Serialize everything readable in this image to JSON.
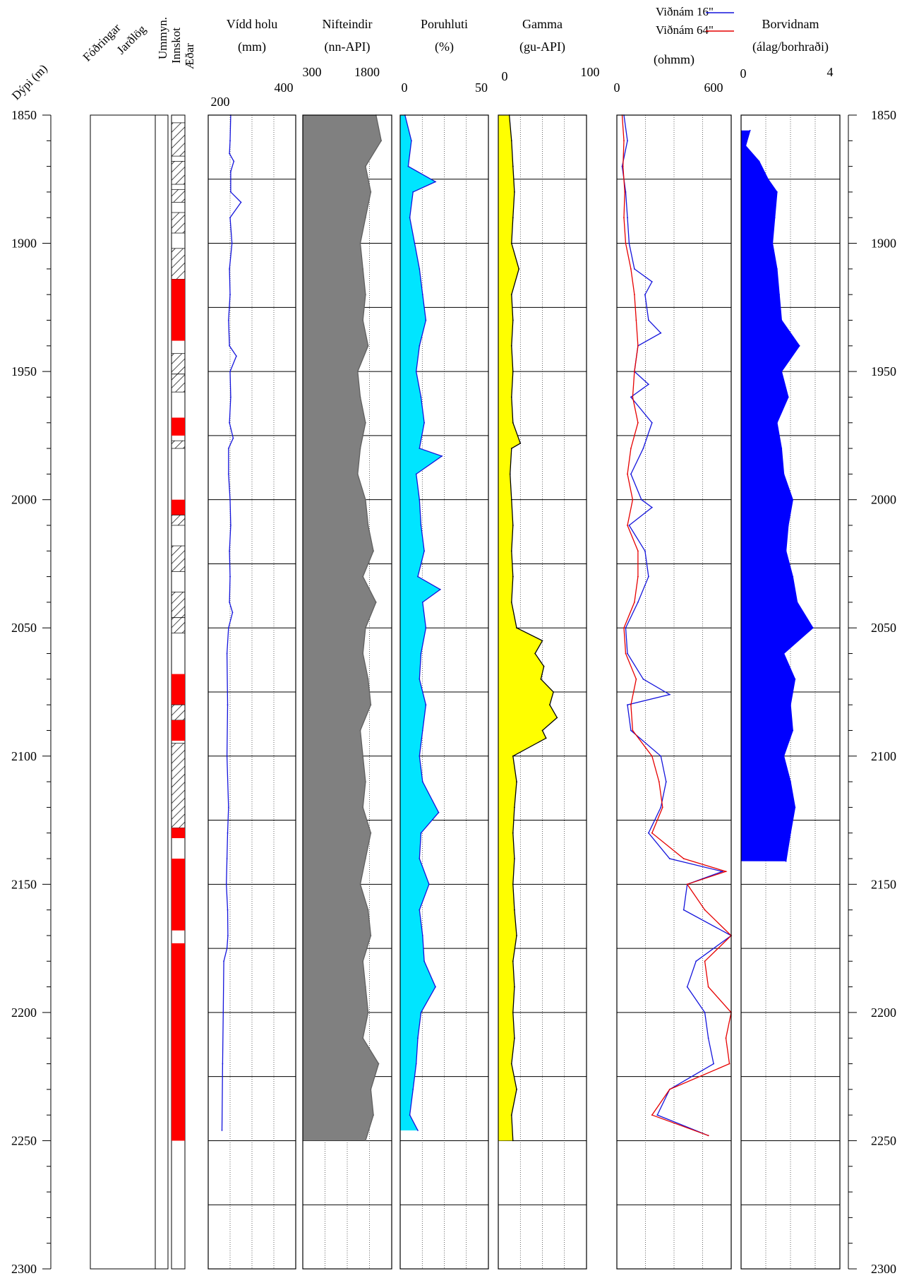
{
  "chart_data": {
    "type": "line",
    "title": "",
    "depth_axis": {
      "label": "Dýpi (m)",
      "range": [
        1850,
        2300
      ],
      "ticks": [
        "1850",
        "1900",
        "1950",
        "2000",
        "2050",
        "2100",
        "2150",
        "2200",
        "2250",
        "2300"
      ]
    },
    "columns": {
      "fodringar": {
        "label": "Fóðringar"
      },
      "jardlog": {
        "label": "Jarðlög"
      },
      "ummyn": {
        "label": "Ummyn."
      },
      "innskot": {
        "label": "Innskot"
      },
      "aedar": {
        "label": "Æðar"
      }
    },
    "lithology_intervals": [
      {
        "top": 1853,
        "bottom": 1866,
        "kind": "hatch"
      },
      {
        "top": 1868,
        "bottom": 1877,
        "kind": "hatch"
      },
      {
        "top": 1879,
        "bottom": 1884,
        "kind": "hatch"
      },
      {
        "top": 1888,
        "bottom": 1896,
        "kind": "hatch"
      },
      {
        "top": 1902,
        "bottom": 1914,
        "kind": "hatch"
      },
      {
        "top": 1914,
        "bottom": 1938,
        "kind": "red"
      },
      {
        "top": 1943,
        "bottom": 1951,
        "kind": "hatch"
      },
      {
        "top": 1951,
        "bottom": 1958,
        "kind": "hatch"
      },
      {
        "top": 1968,
        "bottom": 1975,
        "kind": "red"
      },
      {
        "top": 1977,
        "bottom": 1980,
        "kind": "hatch"
      },
      {
        "top": 2000,
        "bottom": 2006,
        "kind": "red"
      },
      {
        "top": 2006,
        "bottom": 2010,
        "kind": "hatch"
      },
      {
        "top": 2018,
        "bottom": 2028,
        "kind": "hatch"
      },
      {
        "top": 2036,
        "bottom": 2046,
        "kind": "hatch"
      },
      {
        "top": 2046,
        "bottom": 2052,
        "kind": "hatch"
      },
      {
        "top": 2068,
        "bottom": 2080,
        "kind": "red"
      },
      {
        "top": 2080,
        "bottom": 2086,
        "kind": "hatch"
      },
      {
        "top": 2086,
        "bottom": 2094,
        "kind": "red"
      },
      {
        "top": 2095,
        "bottom": 2128,
        "kind": "hatch"
      },
      {
        "top": 2128,
        "bottom": 2132,
        "kind": "red"
      },
      {
        "top": 2140,
        "bottom": 2168,
        "kind": "red"
      },
      {
        "top": 2173,
        "bottom": 2250,
        "kind": "red"
      }
    ],
    "tracks": [
      {
        "id": "caliper",
        "title": "Vídd holu",
        "unit": "(mm)",
        "scale": "linear",
        "range": [
          150,
          430
        ],
        "tick_labels": [
          "200",
          "400"
        ],
        "fill": false,
        "color": "#1414dc",
        "series": [
          {
            "name": "Vídd holu",
            "depth": [
              1850,
              1860,
              1865,
              1868,
              1872,
              1880,
              1884,
              1890,
              1900,
              1910,
              1920,
              1930,
              1940,
              1944,
              1950,
              1960,
              1970,
              1976,
              1980,
              1990,
              2000,
              2010,
              2020,
              2030,
              2040,
              2044,
              2050,
              2060,
              2080,
              2100,
              2120,
              2130,
              2140,
              2150,
              2160,
              2170,
              2175,
              2180,
              2200,
              2220,
              2246
            ],
            "value": [
              222,
              220,
              218,
              232,
              222,
              222,
              255,
              220,
              226,
              218,
              220,
              215,
              218,
              240,
              220,
              222,
              218,
              230,
              215,
              215,
              220,
              222,
              218,
              220,
              218,
              228,
              215,
              210,
              212,
              210,
              215,
              212,
              210,
              208,
              212,
              213,
              210,
              200,
              198,
              196,
              194
            ]
          }
        ]
      },
      {
        "id": "neutron",
        "title": "Nifteindir",
        "unit": "(nn-API)",
        "scale": "linear",
        "range": [
          300,
          2000
        ],
        "tick_labels": [
          "300",
          "1800"
        ],
        "fill": true,
        "fill_color": "#808080",
        "color": "#606060",
        "series": [
          {
            "name": "Nifteindir",
            "depth": [
              1850,
              1860,
              1870,
              1880,
              1890,
              1900,
              1910,
              1920,
              1930,
              1940,
              1950,
              1960,
              1970,
              1980,
              1990,
              2000,
              2010,
              2020,
              2030,
              2040,
              2050,
              2060,
              2070,
              2080,
              2090,
              2100,
              2110,
              2120,
              2130,
              2140,
              2150,
              2160,
              2170,
              2180,
              2190,
              2200,
              2210,
              2220,
              2230,
              2240,
              2250
            ],
            "value": [
              1700,
              1800,
              1500,
              1600,
              1500,
              1400,
              1450,
              1500,
              1450,
              1550,
              1350,
              1400,
              1500,
              1400,
              1350,
              1500,
              1550,
              1650,
              1450,
              1700,
              1500,
              1450,
              1550,
              1600,
              1400,
              1450,
              1500,
              1450,
              1600,
              1500,
              1400,
              1550,
              1600,
              1450,
              1500,
              1550,
              1450,
              1750,
              1600,
              1650,
              1500
            ]
          }
        ]
      },
      {
        "id": "porosity",
        "title": "Poruhluti",
        "unit": "(%)",
        "scale": "linear",
        "range": [
          0,
          55
        ],
        "tick_labels": [
          "0",
          "50"
        ],
        "fill": true,
        "fill_color": "#00e5ff",
        "color": "#1414dc",
        "series": [
          {
            "name": "Poruhluti",
            "depth": [
              1850,
              1860,
              1870,
              1876,
              1880,
              1890,
              1900,
              1910,
              1920,
              1930,
              1940,
              1950,
              1960,
              1970,
              1980,
              1983,
              1990,
              2000,
              2010,
              2020,
              2030,
              2035,
              2040,
              2050,
              2060,
              2070,
              2080,
              2090,
              2100,
              2110,
              2122,
              2130,
              2140,
              2150,
              2160,
              2170,
              2180,
              2190,
              2200,
              2210,
              2220,
              2230,
              2240,
              2246
            ],
            "value": [
              3,
              7,
              5,
              22,
              8,
              6,
              9,
              12,
              14,
              16,
              12,
              10,
              13,
              15,
              12,
              26,
              10,
              12,
              13,
              15,
              11,
              25,
              14,
              16,
              13,
              12,
              16,
              14,
              12,
              14,
              24,
              13,
              12,
              18,
              12,
              14,
              15,
              22,
              13,
              11,
              10,
              8,
              6,
              11
            ]
          }
        ]
      },
      {
        "id": "gamma",
        "title": "Gamma",
        "unit": "(gu-API)",
        "scale": "linear",
        "range": [
          0,
          120
        ],
        "tick_labels": [
          "0",
          "100"
        ],
        "fill": true,
        "fill_color": "#ffff00",
        "color": "#000000",
        "series": [
          {
            "name": "Gamma",
            "depth": [
              1850,
              1860,
              1870,
              1880,
              1890,
              1900,
              1910,
              1920,
              1930,
              1940,
              1950,
              1960,
              1970,
              1978,
              1980,
              1990,
              2000,
              2010,
              2020,
              2030,
              2040,
              2050,
              2055,
              2060,
              2065,
              2070,
              2075,
              2080,
              2085,
              2090,
              2093,
              2100,
              2110,
              2120,
              2130,
              2140,
              2150,
              2160,
              2170,
              2180,
              2190,
              2200,
              2210,
              2220,
              2230,
              2240,
              2250
            ],
            "value": [
              15,
              18,
              20,
              22,
              20,
              18,
              28,
              18,
              20,
              18,
              20,
              18,
              20,
              30,
              18,
              16,
              18,
              20,
              18,
              20,
              18,
              25,
              60,
              50,
              62,
              58,
              75,
              70,
              80,
              60,
              65,
              20,
              25,
              22,
              20,
              22,
              20,
              22,
              25,
              20,
              22,
              20,
              22,
              18,
              25,
              18,
              20
            ]
          }
        ]
      },
      {
        "id": "resistivity",
        "title": "",
        "unit": "(ohmm)",
        "scale": "linear",
        "range": [
          0,
          650
        ],
        "tick_labels": [
          "0",
          "600"
        ],
        "fill": false,
        "series": [
          {
            "name": "Viðnám 16\"",
            "color": "#1414dc",
            "depth": [
              1850,
              1860,
              1870,
              1880,
              1890,
              1900,
              1910,
              1915,
              1920,
              1930,
              1935,
              1940,
              1950,
              1955,
              1960,
              1970,
              1980,
              1990,
              2000,
              2003,
              2010,
              2020,
              2030,
              2040,
              2050,
              2060,
              2070,
              2076,
              2080,
              2090,
              2100,
              2110,
              2120,
              2130,
              2140,
              2145,
              2150,
              2160,
              2170,
              2180,
              2190,
              2200,
              2210,
              2220,
              2230,
              2240,
              2248
            ],
            "value": [
              40,
              60,
              30,
              50,
              60,
              70,
              100,
              200,
              160,
              180,
              250,
              120,
              100,
              180,
              80,
              200,
              150,
              80,
              140,
              200,
              70,
              160,
              180,
              120,
              50,
              60,
              150,
              300,
              60,
              80,
              250,
              280,
              250,
              180,
              300,
              600,
              400,
              380,
              650,
              450,
              400,
              500,
              520,
              550,
              300,
              230,
              520
            ]
          },
          {
            "name": "Viðnám 64\"",
            "color": "#e60000",
            "depth": [
              1850,
              1860,
              1870,
              1880,
              1890,
              1900,
              1910,
              1920,
              1930,
              1940,
              1950,
              1960,
              1970,
              1980,
              1990,
              2000,
              2010,
              2020,
              2030,
              2040,
              2050,
              2060,
              2070,
              2080,
              2090,
              2100,
              2110,
              2120,
              2130,
              2140,
              2145,
              2150,
              2160,
              2170,
              2180,
              2190,
              2200,
              2210,
              2220,
              2230,
              2240,
              2248
            ],
            "value": [
              30,
              40,
              35,
              45,
              40,
              50,
              80,
              100,
              110,
              120,
              100,
              90,
              120,
              80,
              60,
              90,
              60,
              120,
              120,
              100,
              40,
              50,
              110,
              80,
              90,
              200,
              240,
              260,
              200,
              380,
              620,
              400,
              500,
              650,
              500,
              520,
              650,
              620,
              640,
              300,
              200,
              520
            ]
          }
        ]
      },
      {
        "id": "rop",
        "title": "Borvidnam",
        "unit": "(álag/borhraði)",
        "scale": "linear",
        "range": [
          0,
          4.4
        ],
        "tick_labels": [
          "0",
          "4"
        ],
        "fill": true,
        "fill_color": "#0000ff",
        "color": "#0000ff",
        "series": [
          {
            "name": "Borvidnam",
            "depth": [
              1856,
              1862,
              1868,
              1875,
              1880,
              1890,
              1900,
              1910,
              1920,
              1930,
              1940,
              1950,
              1960,
              1970,
              1980,
              1990,
              2000,
              2010,
              2020,
              2030,
              2040,
              2050,
              2060,
              2070,
              2080,
              2090,
              2100,
              2110,
              2120,
              2130,
              2141
            ],
            "value": [
              0.4,
              0.2,
              0.8,
              1.2,
              1.6,
              1.5,
              1.4,
              1.6,
              1.7,
              1.8,
              2.6,
              1.8,
              2.1,
              1.6,
              1.8,
              1.9,
              2.3,
              2.1,
              2.0,
              2.3,
              2.5,
              3.2,
              1.9,
              2.4,
              2.2,
              2.3,
              1.9,
              2.2,
              2.4,
              2.2,
              2.0
            ]
          }
        ]
      }
    ],
    "legend": [
      {
        "label": "Viðnám 16\"",
        "color": "#1414dc"
      },
      {
        "label": "Viðnám 64\"",
        "color": "#e60000"
      }
    ],
    "grid": true
  }
}
